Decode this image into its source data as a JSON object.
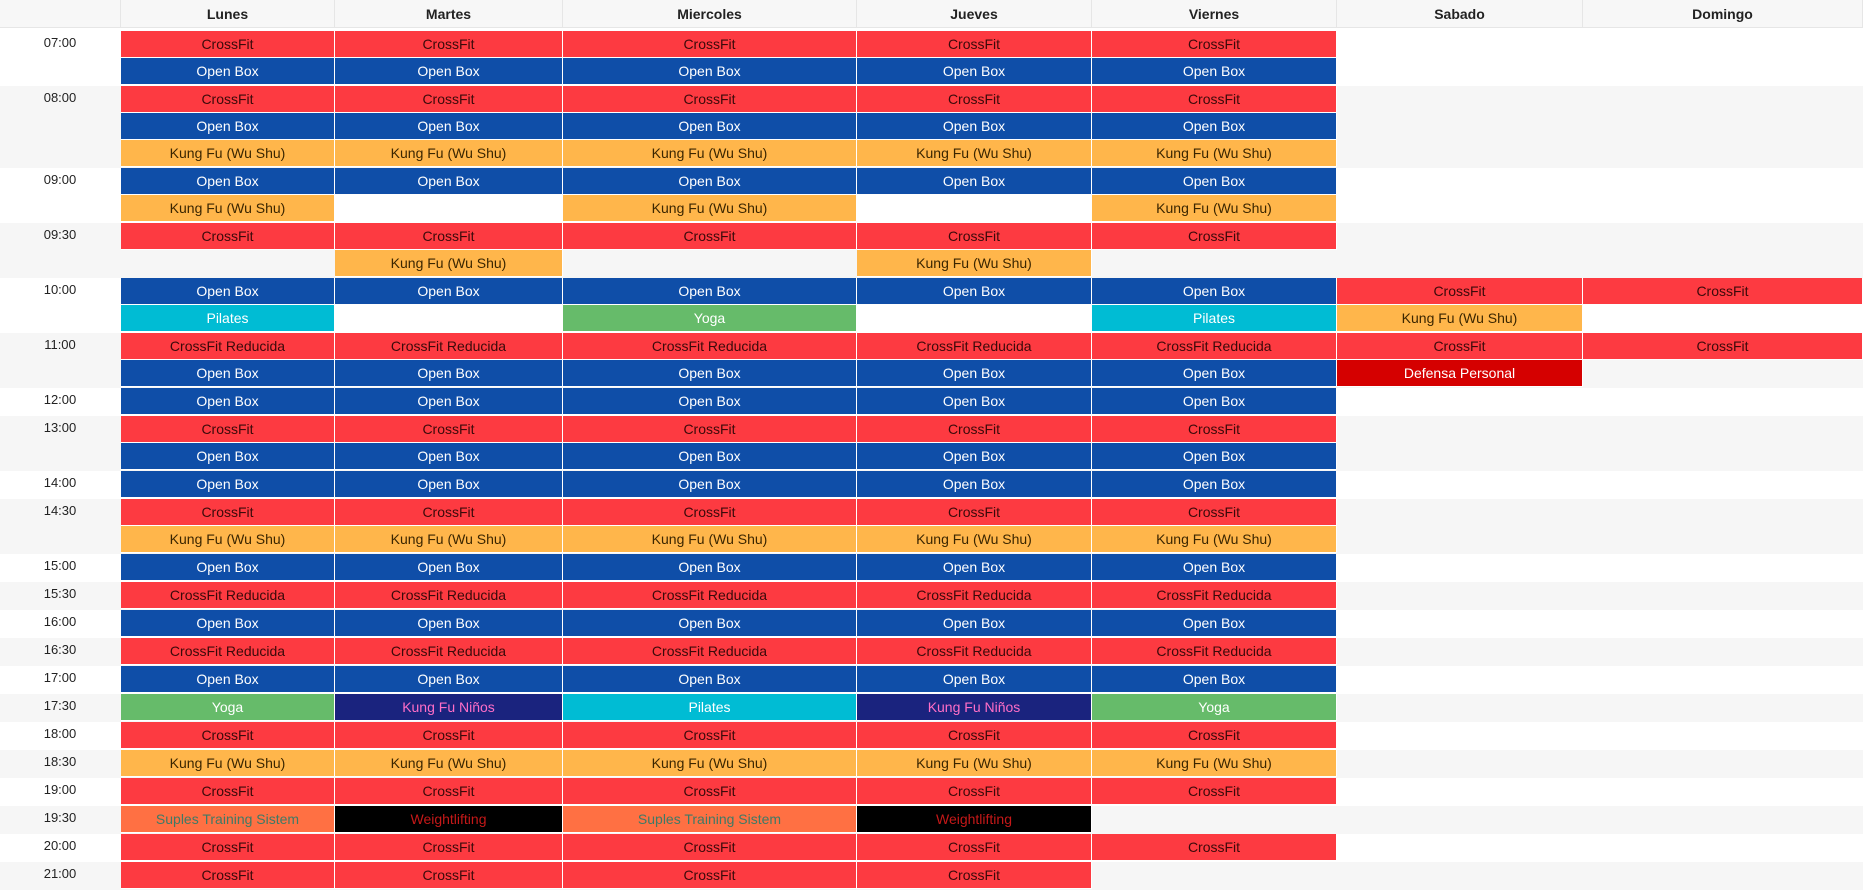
{
  "days": [
    "Lunes",
    "Martes",
    "Miercoles",
    "Jueves",
    "Viernes",
    "Sabado",
    "Domingo"
  ],
  "colors": {
    "crossfit": "#fd3a41",
    "openbox": "#0f4ea8",
    "kungfu": "#ffb64b",
    "pilates": "#00bcd4",
    "yoga": "#66bb6a",
    "defensa": "#d50000",
    "ninos": "#1a237e",
    "suples": "#ff7043",
    "weightlifting": "#000000"
  },
  "slots": [
    {
      "time": "07:00",
      "rows": [
        [
          {
            "l": "CrossFit",
            "t": "crossfit"
          },
          {
            "l": "CrossFit",
            "t": "crossfit"
          },
          {
            "l": "CrossFit",
            "t": "crossfit"
          },
          {
            "l": "CrossFit",
            "t": "crossfit"
          },
          {
            "l": "CrossFit",
            "t": "crossfit"
          },
          null,
          null
        ],
        [
          {
            "l": "Open Box",
            "t": "openbox"
          },
          {
            "l": "Open Box",
            "t": "openbox"
          },
          {
            "l": "Open Box",
            "t": "openbox"
          },
          {
            "l": "Open Box",
            "t": "openbox"
          },
          {
            "l": "Open Box",
            "t": "openbox"
          },
          null,
          null
        ]
      ]
    },
    {
      "time": "08:00",
      "rows": [
        [
          {
            "l": "CrossFit",
            "t": "crossfit"
          },
          {
            "l": "CrossFit",
            "t": "crossfit"
          },
          {
            "l": "CrossFit",
            "t": "crossfit"
          },
          {
            "l": "CrossFit",
            "t": "crossfit"
          },
          {
            "l": "CrossFit",
            "t": "crossfit"
          },
          null,
          null
        ],
        [
          {
            "l": "Open Box",
            "t": "openbox"
          },
          {
            "l": "Open Box",
            "t": "openbox"
          },
          {
            "l": "Open Box",
            "t": "openbox"
          },
          {
            "l": "Open Box",
            "t": "openbox"
          },
          {
            "l": "Open Box",
            "t": "openbox"
          },
          null,
          null
        ],
        [
          {
            "l": "Kung Fu (Wu Shu)",
            "t": "kungfu"
          },
          {
            "l": "Kung Fu (Wu Shu)",
            "t": "kungfu"
          },
          {
            "l": "Kung Fu (Wu Shu)",
            "t": "kungfu"
          },
          {
            "l": "Kung Fu (Wu Shu)",
            "t": "kungfu"
          },
          {
            "l": "Kung Fu (Wu Shu)",
            "t": "kungfu"
          },
          null,
          null
        ]
      ]
    },
    {
      "time": "09:00",
      "rows": [
        [
          {
            "l": "Open Box",
            "t": "openbox"
          },
          {
            "l": "Open Box",
            "t": "openbox"
          },
          {
            "l": "Open Box",
            "t": "openbox"
          },
          {
            "l": "Open Box",
            "t": "openbox"
          },
          {
            "l": "Open Box",
            "t": "openbox"
          },
          null,
          null
        ],
        [
          {
            "l": "Kung Fu (Wu Shu)",
            "t": "kungfu"
          },
          null,
          {
            "l": "Kung Fu (Wu Shu)",
            "t": "kungfu"
          },
          null,
          {
            "l": "Kung Fu (Wu Shu)",
            "t": "kungfu"
          },
          null,
          null
        ]
      ]
    },
    {
      "time": "09:30",
      "rows": [
        [
          {
            "l": "CrossFit",
            "t": "crossfit"
          },
          {
            "l": "CrossFit",
            "t": "crossfit"
          },
          {
            "l": "CrossFit",
            "t": "crossfit"
          },
          {
            "l": "CrossFit",
            "t": "crossfit"
          },
          {
            "l": "CrossFit",
            "t": "crossfit"
          },
          null,
          null
        ],
        [
          null,
          {
            "l": "Kung Fu (Wu Shu)",
            "t": "kungfu"
          },
          null,
          {
            "l": "Kung Fu (Wu Shu)",
            "t": "kungfu"
          },
          null,
          null,
          null
        ]
      ]
    },
    {
      "time": "10:00",
      "rows": [
        [
          {
            "l": "Open Box",
            "t": "openbox"
          },
          {
            "l": "Open Box",
            "t": "openbox"
          },
          {
            "l": "Open Box",
            "t": "openbox"
          },
          {
            "l": "Open Box",
            "t": "openbox"
          },
          {
            "l": "Open Box",
            "t": "openbox"
          },
          {
            "l": "CrossFit",
            "t": "crossfit"
          },
          {
            "l": "CrossFit",
            "t": "crossfit"
          }
        ],
        [
          {
            "l": "Pilates",
            "t": "pilates"
          },
          null,
          {
            "l": "Yoga",
            "t": "yoga"
          },
          null,
          {
            "l": "Pilates",
            "t": "pilates"
          },
          {
            "l": "Kung Fu (Wu Shu)",
            "t": "kungfu"
          },
          null
        ]
      ]
    },
    {
      "time": "11:00",
      "rows": [
        [
          {
            "l": "CrossFit Reducida",
            "t": "crossfit"
          },
          {
            "l": "CrossFit Reducida",
            "t": "crossfit"
          },
          {
            "l": "CrossFit Reducida",
            "t": "crossfit"
          },
          {
            "l": "CrossFit Reducida",
            "t": "crossfit"
          },
          {
            "l": "CrossFit Reducida",
            "t": "crossfit"
          },
          {
            "l": "CrossFit",
            "t": "crossfit"
          },
          {
            "l": "CrossFit",
            "t": "crossfit"
          }
        ],
        [
          {
            "l": "Open Box",
            "t": "openbox"
          },
          {
            "l": "Open Box",
            "t": "openbox"
          },
          {
            "l": "Open Box",
            "t": "openbox"
          },
          {
            "l": "Open Box",
            "t": "openbox"
          },
          {
            "l": "Open Box",
            "t": "openbox"
          },
          {
            "l": "Defensa Personal",
            "t": "defensa"
          },
          null
        ]
      ]
    },
    {
      "time": "12:00",
      "rows": [
        [
          {
            "l": "Open Box",
            "t": "openbox"
          },
          {
            "l": "Open Box",
            "t": "openbox"
          },
          {
            "l": "Open Box",
            "t": "openbox"
          },
          {
            "l": "Open Box",
            "t": "openbox"
          },
          {
            "l": "Open Box",
            "t": "openbox"
          },
          null,
          null
        ]
      ]
    },
    {
      "time": "13:00",
      "rows": [
        [
          {
            "l": "CrossFit",
            "t": "crossfit"
          },
          {
            "l": "CrossFit",
            "t": "crossfit"
          },
          {
            "l": "CrossFit",
            "t": "crossfit"
          },
          {
            "l": "CrossFit",
            "t": "crossfit"
          },
          {
            "l": "CrossFit",
            "t": "crossfit"
          },
          null,
          null
        ],
        [
          {
            "l": "Open Box",
            "t": "openbox"
          },
          {
            "l": "Open Box",
            "t": "openbox"
          },
          {
            "l": "Open Box",
            "t": "openbox"
          },
          {
            "l": "Open Box",
            "t": "openbox"
          },
          {
            "l": "Open Box",
            "t": "openbox"
          },
          null,
          null
        ]
      ]
    },
    {
      "time": "14:00",
      "rows": [
        [
          {
            "l": "Open Box",
            "t": "openbox"
          },
          {
            "l": "Open Box",
            "t": "openbox"
          },
          {
            "l": "Open Box",
            "t": "openbox"
          },
          {
            "l": "Open Box",
            "t": "openbox"
          },
          {
            "l": "Open Box",
            "t": "openbox"
          },
          null,
          null
        ]
      ]
    },
    {
      "time": "14:30",
      "rows": [
        [
          {
            "l": "CrossFit",
            "t": "crossfit"
          },
          {
            "l": "CrossFit",
            "t": "crossfit"
          },
          {
            "l": "CrossFit",
            "t": "crossfit"
          },
          {
            "l": "CrossFit",
            "t": "crossfit"
          },
          {
            "l": "CrossFit",
            "t": "crossfit"
          },
          null,
          null
        ],
        [
          {
            "l": "Kung Fu (Wu Shu)",
            "t": "kungfu"
          },
          {
            "l": "Kung Fu (Wu Shu)",
            "t": "kungfu"
          },
          {
            "l": "Kung Fu (Wu Shu)",
            "t": "kungfu"
          },
          {
            "l": "Kung Fu (Wu Shu)",
            "t": "kungfu"
          },
          {
            "l": "Kung Fu (Wu Shu)",
            "t": "kungfu"
          },
          null,
          null
        ]
      ]
    },
    {
      "time": "15:00",
      "rows": [
        [
          {
            "l": "Open Box",
            "t": "openbox"
          },
          {
            "l": "Open Box",
            "t": "openbox"
          },
          {
            "l": "Open Box",
            "t": "openbox"
          },
          {
            "l": "Open Box",
            "t": "openbox"
          },
          {
            "l": "Open Box",
            "t": "openbox"
          },
          null,
          null
        ]
      ]
    },
    {
      "time": "15:30",
      "rows": [
        [
          {
            "l": "CrossFit Reducida",
            "t": "crossfit"
          },
          {
            "l": "CrossFit Reducida",
            "t": "crossfit"
          },
          {
            "l": "CrossFit Reducida",
            "t": "crossfit"
          },
          {
            "l": "CrossFit Reducida",
            "t": "crossfit"
          },
          {
            "l": "CrossFit Reducida",
            "t": "crossfit"
          },
          null,
          null
        ]
      ]
    },
    {
      "time": "16:00",
      "rows": [
        [
          {
            "l": "Open Box",
            "t": "openbox"
          },
          {
            "l": "Open Box",
            "t": "openbox"
          },
          {
            "l": "Open Box",
            "t": "openbox"
          },
          {
            "l": "Open Box",
            "t": "openbox"
          },
          {
            "l": "Open Box",
            "t": "openbox"
          },
          null,
          null
        ]
      ]
    },
    {
      "time": "16:30",
      "rows": [
        [
          {
            "l": "CrossFit Reducida",
            "t": "crossfit"
          },
          {
            "l": "CrossFit Reducida",
            "t": "crossfit"
          },
          {
            "l": "CrossFit Reducida",
            "t": "crossfit"
          },
          {
            "l": "CrossFit Reducida",
            "t": "crossfit"
          },
          {
            "l": "CrossFit Reducida",
            "t": "crossfit"
          },
          null,
          null
        ]
      ]
    },
    {
      "time": "17:00",
      "rows": [
        [
          {
            "l": "Open Box",
            "t": "openbox"
          },
          {
            "l": "Open Box",
            "t": "openbox"
          },
          {
            "l": "Open Box",
            "t": "openbox"
          },
          {
            "l": "Open Box",
            "t": "openbox"
          },
          {
            "l": "Open Box",
            "t": "openbox"
          },
          null,
          null
        ]
      ]
    },
    {
      "time": "17:30",
      "rows": [
        [
          {
            "l": "Yoga",
            "t": "yoga"
          },
          {
            "l": "Kung Fu Niños",
            "t": "ninos"
          },
          {
            "l": "Pilates",
            "t": "pilates"
          },
          {
            "l": "Kung Fu Niños",
            "t": "ninos"
          },
          {
            "l": "Yoga",
            "t": "yoga"
          },
          null,
          null
        ]
      ]
    },
    {
      "time": "18:00",
      "rows": [
        [
          {
            "l": "CrossFit",
            "t": "crossfit"
          },
          {
            "l": "CrossFit",
            "t": "crossfit"
          },
          {
            "l": "CrossFit",
            "t": "crossfit"
          },
          {
            "l": "CrossFit",
            "t": "crossfit"
          },
          {
            "l": "CrossFit",
            "t": "crossfit"
          },
          null,
          null
        ]
      ]
    },
    {
      "time": "18:30",
      "rows": [
        [
          {
            "l": "Kung Fu (Wu Shu)",
            "t": "kungfu"
          },
          {
            "l": "Kung Fu (Wu Shu)",
            "t": "kungfu"
          },
          {
            "l": "Kung Fu (Wu Shu)",
            "t": "kungfu"
          },
          {
            "l": "Kung Fu (Wu Shu)",
            "t": "kungfu"
          },
          {
            "l": "Kung Fu (Wu Shu)",
            "t": "kungfu"
          },
          null,
          null
        ]
      ]
    },
    {
      "time": "19:00",
      "rows": [
        [
          {
            "l": "CrossFit",
            "t": "crossfit"
          },
          {
            "l": "CrossFit",
            "t": "crossfit"
          },
          {
            "l": "CrossFit",
            "t": "crossfit"
          },
          {
            "l": "CrossFit",
            "t": "crossfit"
          },
          {
            "l": "CrossFit",
            "t": "crossfit"
          },
          null,
          null
        ]
      ]
    },
    {
      "time": "19:30",
      "rows": [
        [
          {
            "l": "Suples Training Sistem",
            "t": "suples"
          },
          {
            "l": "Weightlifting",
            "t": "weightlifting"
          },
          {
            "l": "Suples Training Sistem",
            "t": "suples"
          },
          {
            "l": "Weightlifting",
            "t": "weightlifting"
          },
          null,
          null,
          null
        ]
      ]
    },
    {
      "time": "20:00",
      "rows": [
        [
          {
            "l": "CrossFit",
            "t": "crossfit"
          },
          {
            "l": "CrossFit",
            "t": "crossfit"
          },
          {
            "l": "CrossFit",
            "t": "crossfit"
          },
          {
            "l": "CrossFit",
            "t": "crossfit"
          },
          {
            "l": "CrossFit",
            "t": "crossfit"
          },
          null,
          null
        ]
      ]
    },
    {
      "time": "21:00",
      "rows": [
        [
          {
            "l": "CrossFit",
            "t": "crossfit"
          },
          {
            "l": "CrossFit",
            "t": "crossfit"
          },
          {
            "l": "CrossFit",
            "t": "crossfit"
          },
          {
            "l": "CrossFit",
            "t": "crossfit"
          },
          null,
          null,
          null
        ]
      ]
    }
  ]
}
